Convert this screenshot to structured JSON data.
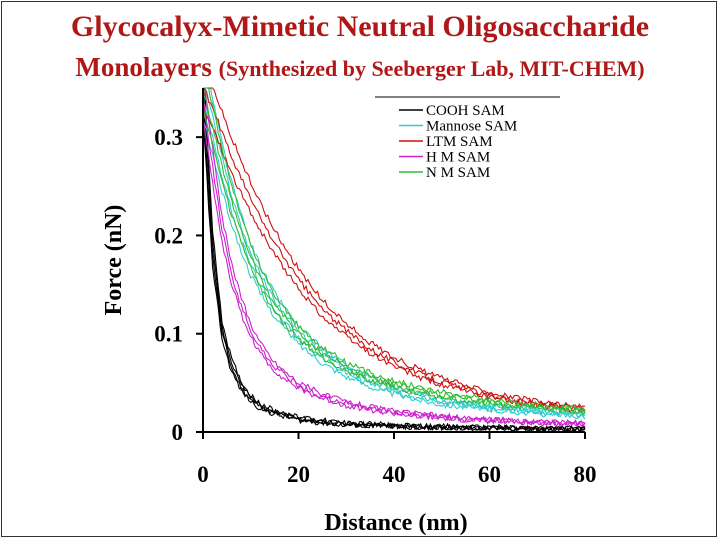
{
  "title": {
    "line1": "Glycocalyx-Mimetic Neutral Oligosaccharide",
    "line2_main": "Monolayers",
    "line2_sub": "(Synthesized by Seeberger Lab, MIT-CHEM)"
  },
  "chart_data": {
    "type": "line",
    "title": "Glycocalyx-Mimetic Neutral Oligosaccharide Monolayers (Synthesized by Seeberger Lab, MIT-CHEM)",
    "xlabel": "Distance (nm)",
    "ylabel": "Force (nN)",
    "xlim": [
      0,
      80
    ],
    "ylim": [
      0,
      0.35
    ],
    "xticks": [
      0,
      20,
      40,
      60,
      80
    ],
    "yticks": [
      0,
      0.1,
      0.2,
      0.3
    ],
    "xtick_labels": [
      "0",
      "20",
      "40",
      "60",
      "80"
    ],
    "ytick_labels": [
      "0",
      "0.1",
      "0.2",
      "0.3"
    ],
    "grid": false,
    "legend_position": "top-right",
    "x": [
      0,
      2,
      4,
      6,
      8,
      10,
      12,
      15,
      20,
      25,
      30,
      35,
      40,
      45,
      50,
      55,
      60,
      65,
      70,
      75,
      80
    ],
    "series": [
      {
        "name": "COOH SAM",
        "color": "#000000",
        "replicates": 4,
        "values": [
          0.34,
          0.18,
          0.1,
          0.065,
          0.045,
          0.033,
          0.026,
          0.019,
          0.013,
          0.01,
          0.008,
          0.007,
          0.006,
          0.005,
          0.005,
          0.004,
          0.004,
          0.004,
          0.003,
          0.003,
          0.003
        ]
      },
      {
        "name": "Mannose SAM",
        "color": "#33cccc",
        "replicates": 4,
        "values": [
          0.34,
          0.3,
          0.26,
          0.225,
          0.195,
          0.17,
          0.15,
          0.125,
          0.095,
          0.075,
          0.06,
          0.049,
          0.041,
          0.035,
          0.03,
          0.027,
          0.024,
          0.022,
          0.02,
          0.018,
          0.017
        ]
      },
      {
        "name": "LTM SAM",
        "color": "#cc1111",
        "replicates": 3,
        "values": [
          0.35,
          0.33,
          0.305,
          0.28,
          0.258,
          0.237,
          0.218,
          0.192,
          0.155,
          0.125,
          0.103,
          0.085,
          0.071,
          0.06,
          0.051,
          0.044,
          0.038,
          0.033,
          0.029,
          0.026,
          0.023
        ]
      },
      {
        "name": "H M SAM",
        "color": "#cc22cc",
        "replicates": 3,
        "values": [
          0.34,
          0.27,
          0.205,
          0.16,
          0.128,
          0.103,
          0.085,
          0.066,
          0.047,
          0.036,
          0.029,
          0.024,
          0.02,
          0.017,
          0.015,
          0.013,
          0.012,
          0.011,
          0.01,
          0.009,
          0.009
        ]
      },
      {
        "name": "N M SAM",
        "color": "#33bb33",
        "replicates": 3,
        "values": [
          0.35,
          0.31,
          0.27,
          0.235,
          0.205,
          0.178,
          0.156,
          0.13,
          0.1,
          0.08,
          0.066,
          0.056,
          0.049,
          0.043,
          0.038,
          0.034,
          0.031,
          0.028,
          0.026,
          0.024,
          0.022
        ]
      }
    ]
  }
}
